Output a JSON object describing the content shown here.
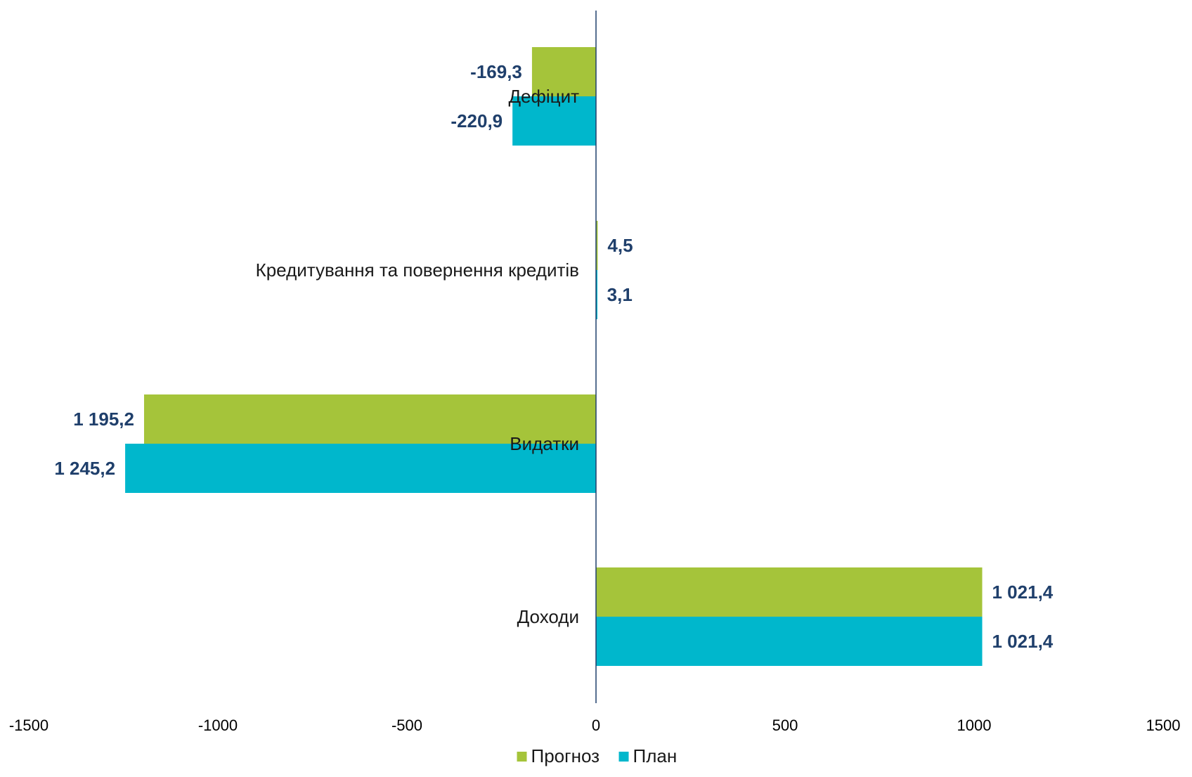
{
  "chart_data": {
    "type": "bar",
    "orientation": "horizontal",
    "categories": [
      "Дефіцит",
      "Кредитування та повернення кредитів",
      "Видатки",
      "Доходи"
    ],
    "series": [
      {
        "name": "Прогноз",
        "color": "#a5c43a",
        "values": [
          -169.3,
          4.5,
          -1195.2,
          1021.4
        ],
        "labels": [
          "-169,3",
          "4,5",
          "1 195,2",
          "1 021,4"
        ]
      },
      {
        "name": "План",
        "color": "#00b7cc",
        "values": [
          -220.9,
          3.1,
          -1245.2,
          1021.4
        ],
        "labels": [
          "-220,9",
          "3,1",
          "1 245,2",
          "1 021,4"
        ]
      }
    ],
    "xlim": [
      -1500,
      1500
    ],
    "xticks": [
      -1500,
      -1000,
      -500,
      0,
      500,
      1000,
      1500
    ],
    "xtick_labels": [
      "-1500",
      "-1000",
      "-500",
      "0",
      "500",
      "1000",
      "1500"
    ],
    "grid": false,
    "legend_position": "bottom-center",
    "axis_color": "#1f3f6b",
    "data_label_color": "#1f3f6b"
  }
}
